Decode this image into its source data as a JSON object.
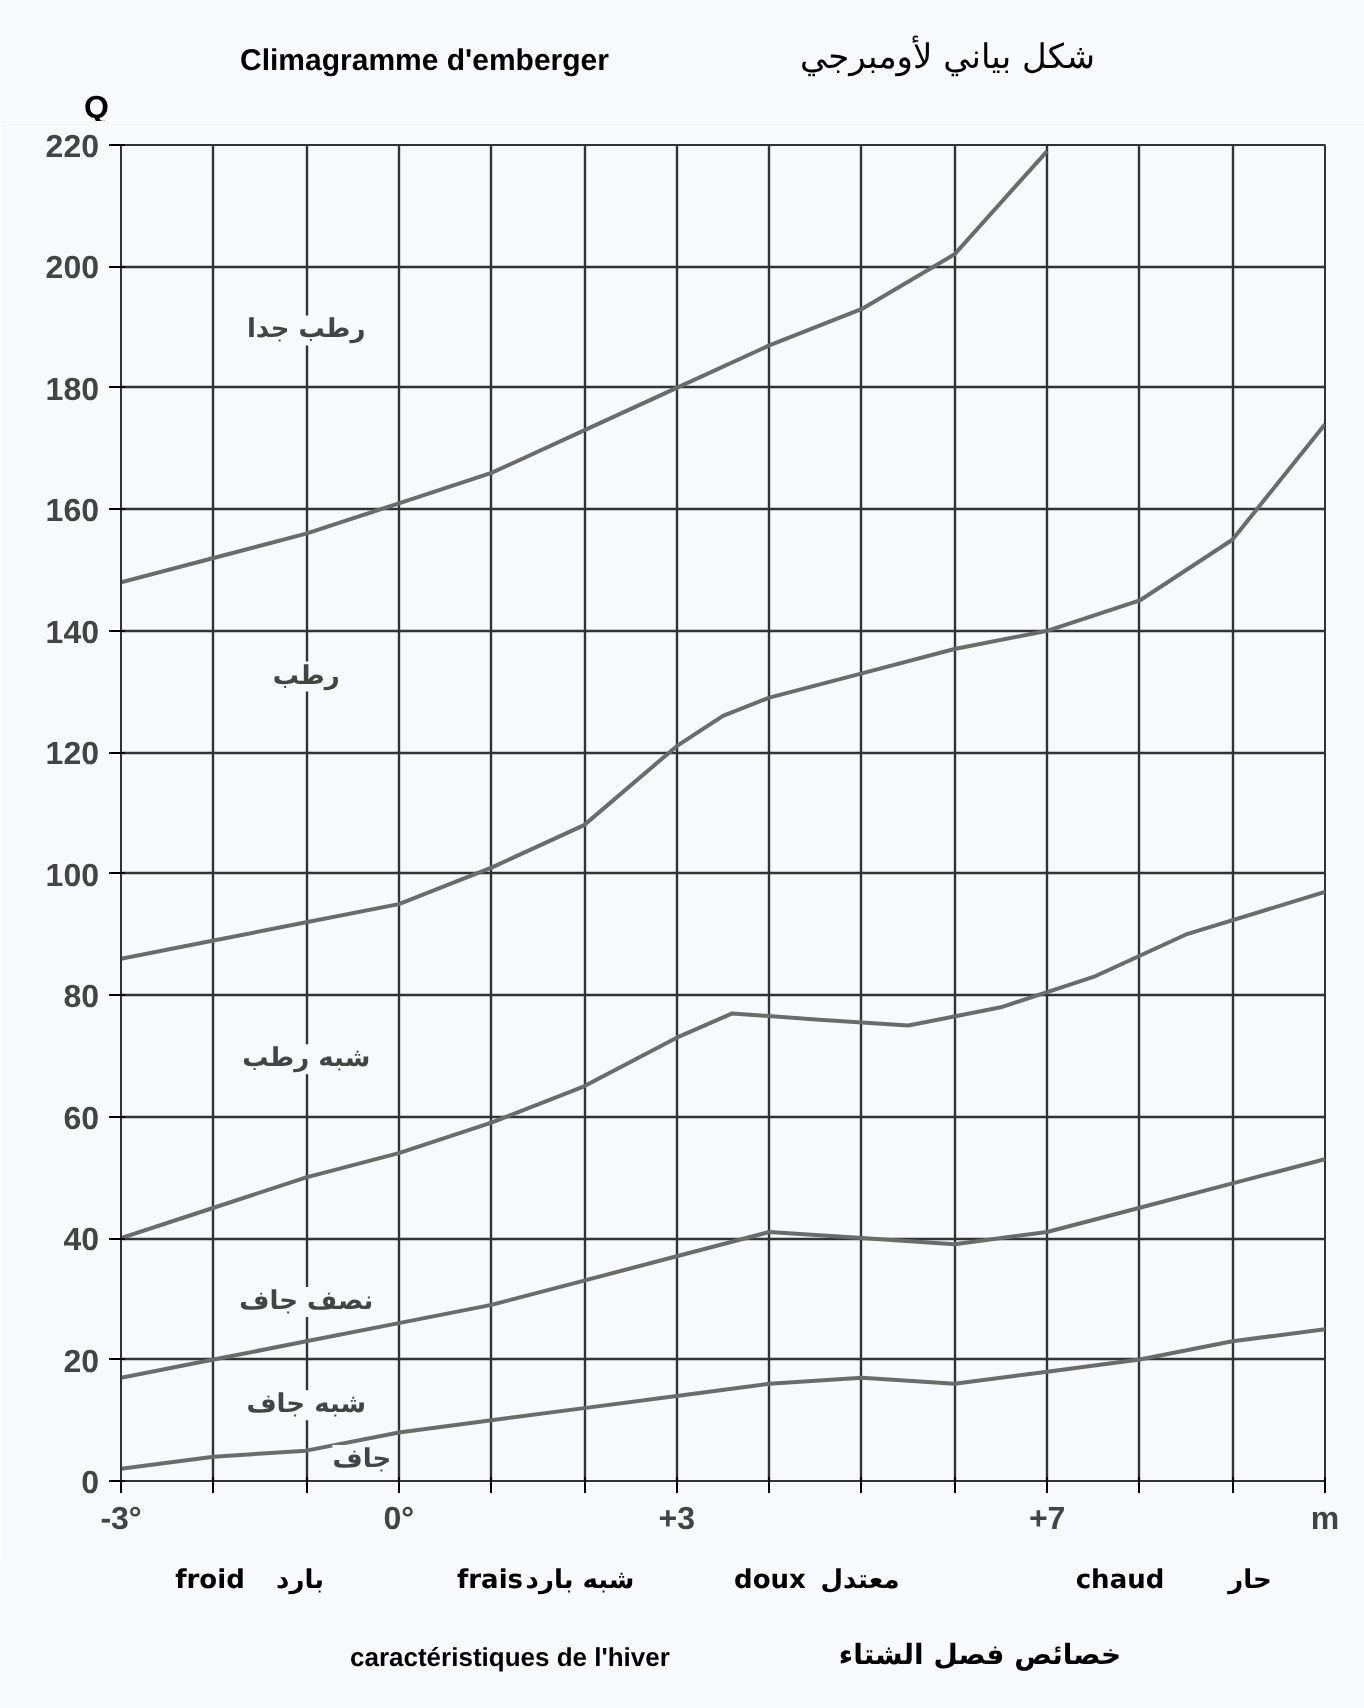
{
  "chart_data": {
    "type": "line",
    "title": "Climagramme d'emberger",
    "subtitle": "شكل بياني لأومبرجي",
    "xlabel": "caractéristiques de l'hiver",
    "ylabel": "Q",
    "xlim": [
      -3,
      10
    ],
    "ylim": [
      0,
      220
    ],
    "xticks": [
      {
        "value": -3,
        "label": "-3°"
      },
      {
        "value": -2,
        "label": null
      },
      {
        "value": -1,
        "label": null
      },
      {
        "value": 0,
        "label": "0°"
      },
      {
        "value": 1,
        "label": null
      },
      {
        "value": 2,
        "label": null
      },
      {
        "value": 3,
        "label": "+3"
      },
      {
        "value": 4,
        "label": null
      },
      {
        "value": 5,
        "label": null
      },
      {
        "value": 6,
        "label": null
      },
      {
        "value": 7,
        "label": "+7"
      },
      {
        "value": 8,
        "label": null
      },
      {
        "value": 9,
        "label": null
      },
      {
        "value": 10,
        "label": "m"
      }
    ],
    "yticks": [
      0,
      20,
      40,
      60,
      80,
      100,
      120,
      140,
      160,
      180,
      200,
      220
    ],
    "grid": true,
    "line_style": "solid",
    "series": [
      {
        "color": "#6b6b6b",
        "x": [
          -3,
          -2,
          -1,
          0,
          1,
          2,
          3,
          4,
          5,
          6,
          7
        ],
        "values": [
          148,
          152,
          156,
          161,
          166,
          173,
          180,
          187,
          193,
          202,
          219
        ]
      },
      {
        "color": "#6b6b6b",
        "x": [
          -3,
          -2,
          -1,
          0,
          1,
          2,
          3,
          3.5,
          4,
          5,
          6,
          7,
          8,
          9,
          10
        ],
        "values": [
          86,
          89,
          92,
          95,
          101,
          108,
          121,
          126,
          129,
          133,
          137,
          140,
          145,
          155,
          174
        ]
      },
      {
        "color": "#6b6b6b",
        "x": [
          -3,
          -2,
          -1,
          0,
          1,
          2,
          3,
          3.6,
          4.5,
          5.5,
          6.5,
          7.5,
          8.5,
          10
        ],
        "values": [
          40,
          45,
          50,
          54,
          59,
          65,
          73,
          77,
          76,
          75,
          78,
          83,
          90,
          97
        ]
      },
      {
        "color": "#6b6b6b",
        "x": [
          -3,
          -2,
          -1,
          0,
          1,
          2,
          3,
          4,
          5,
          6,
          7,
          8,
          9,
          10
        ],
        "values": [
          17,
          20,
          23,
          26,
          29,
          33,
          37,
          41,
          40,
          39,
          41,
          45,
          49,
          53
        ]
      },
      {
        "color": "#6b6b6b",
        "x": [
          -3,
          -2,
          -1,
          0,
          1,
          2,
          3,
          4,
          5,
          6,
          7,
          8,
          9,
          10
        ],
        "values": [
          2,
          4,
          5,
          8,
          10,
          12,
          14,
          16,
          17,
          16,
          18,
          20,
          23,
          25
        ]
      }
    ],
    "annotations": [
      "رطب جدا",
      "رطب",
      "شبه رطب",
      "نصف جاف",
      "شبه جاف",
      "جاف",
      "froid",
      "بارد",
      "frais",
      "شبه بارد",
      "doux",
      "معتدل",
      "chaud",
      "حار",
      "خصائص فصل الشتاء"
    ]
  }
}
